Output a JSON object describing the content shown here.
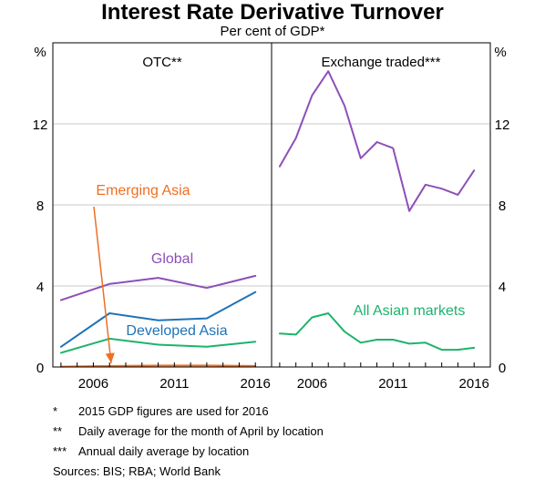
{
  "title": "Interest Rate Derivative Turnover",
  "subtitle": "Per cent of GDP*",
  "footnotes": [
    {
      "mark": "*",
      "text": "2015 GDP figures are used for 2016"
    },
    {
      "mark": "**",
      "text": "Daily average for the month of April by location"
    },
    {
      "mark": "***",
      "text": "Annual daily average by location"
    }
  ],
  "sources": "Sources:  BIS; RBA; World Bank",
  "colors": {
    "purple": "#8d4fb9",
    "blue": "#1f73b7",
    "green": "#1db36b",
    "orange": "#ee7023"
  },
  "chart_data": [
    {
      "type": "line",
      "panel_title": "OTC**",
      "yunit_left": "%",
      "xlim": [
        2003.5,
        2017
      ],
      "ylim": [
        0,
        16
      ],
      "yticks": [
        0,
        4,
        8,
        12
      ],
      "xticks": [
        2006,
        2011,
        2016
      ],
      "series": [
        {
          "name": "Global",
          "color": "#8d4fb9",
          "x": [
            2004,
            2007,
            2010,
            2013,
            2016
          ],
          "y": [
            3.3,
            4.1,
            4.4,
            3.9,
            4.5
          ]
        },
        {
          "name": "Developed Asia",
          "color": "#1f73b7",
          "x": [
            2004,
            2007,
            2010,
            2013,
            2016
          ],
          "y": [
            1.0,
            2.65,
            2.3,
            2.4,
            3.7
          ]
        },
        {
          "name": "",
          "color": "#1db36b",
          "x": [
            2004,
            2007,
            2010,
            2013,
            2016
          ],
          "y": [
            0.7,
            1.4,
            1.1,
            1.0,
            1.25
          ]
        },
        {
          "name": "Emerging Asia",
          "color": "#ee7023",
          "x": [
            2004,
            2007,
            2010,
            2013,
            2016
          ],
          "y": [
            0.02,
            0.05,
            0.07,
            0.07,
            0.05
          ]
        }
      ],
      "labels": [
        {
          "text": "Emerging Asia",
          "series": "Emerging Asia"
        },
        {
          "text": "Global",
          "series": "Global"
        },
        {
          "text": "Developed Asia",
          "series": "Developed Asia"
        }
      ]
    },
    {
      "type": "line",
      "panel_title": "Exchange traded***",
      "yunit_right": "%",
      "xlim": [
        2003.5,
        2017
      ],
      "ylim": [
        0,
        16
      ],
      "yticks": [
        0,
        4,
        8,
        12
      ],
      "xticks": [
        2006,
        2011,
        2016
      ],
      "series": [
        {
          "name": "",
          "color": "#8d4fb9",
          "x": [
            2004,
            2005,
            2006,
            2007,
            2008,
            2009,
            2010,
            2011,
            2012,
            2013,
            2014,
            2015,
            2016
          ],
          "y": [
            9.9,
            11.3,
            13.4,
            14.6,
            12.9,
            10.3,
            11.1,
            10.8,
            7.7,
            9.0,
            8.8,
            8.5,
            9.7
          ]
        },
        {
          "name": "All Asian markets",
          "color": "#1db36b",
          "x": [
            2004,
            2005,
            2006,
            2007,
            2008,
            2009,
            2010,
            2011,
            2012,
            2013,
            2014,
            2015,
            2016
          ],
          "y": [
            1.65,
            1.6,
            2.45,
            2.65,
            1.75,
            1.2,
            1.35,
            1.35,
            1.15,
            1.2,
            0.85,
            0.85,
            0.95
          ]
        }
      ],
      "labels": [
        {
          "text": "All Asian markets",
          "series": "All Asian markets"
        }
      ]
    }
  ]
}
